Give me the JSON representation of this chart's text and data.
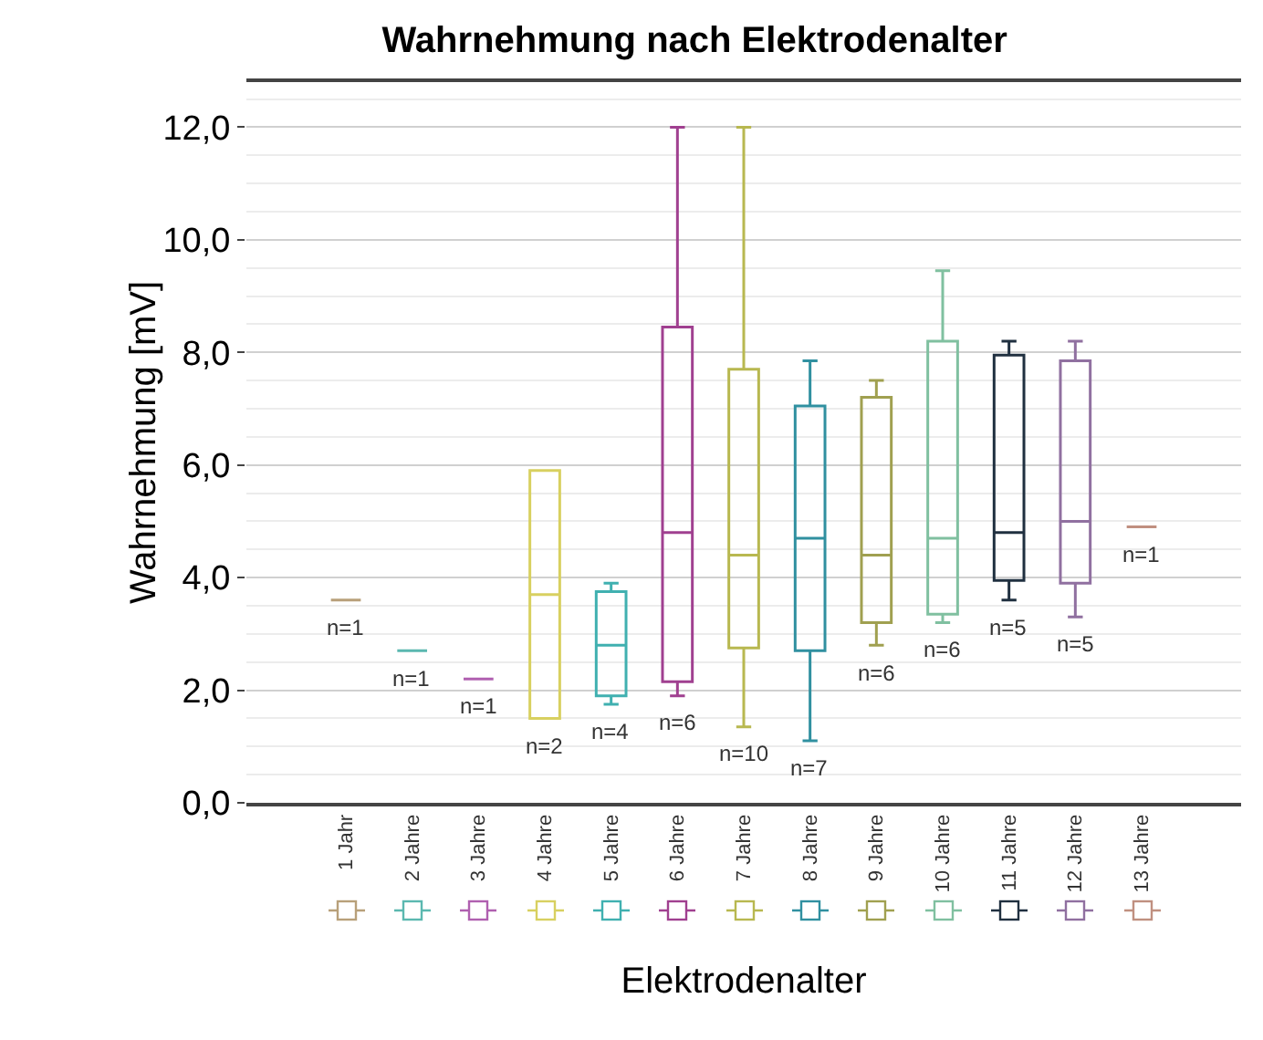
{
  "chart_data": {
    "type": "box",
    "title": "Wahrnehmung nach Elektrodenalter",
    "xlabel": "Elektrodenalter",
    "ylabel": "Wahrnehmung [mV]",
    "categories": [
      "1 Jahr",
      "2 Jahre",
      "3 Jahre",
      "4 Jahre",
      "5 Jahre",
      "6 Jahre",
      "7 Jahre",
      "8 Jahre",
      "9 Jahre",
      "10 Jahre",
      "11 Jahre",
      "12 Jahre",
      "13 Jahre"
    ],
    "colors": [
      "#b8a07a",
      "#5bb8b0",
      "#b060b0",
      "#d8d060",
      "#40b0b0",
      "#a04090",
      "#b8b850",
      "#3090a0",
      "#a0a050",
      "#80c0a0",
      "#203040",
      "#9070a0",
      "#c09080"
    ],
    "boxes": [
      {
        "low": 3.6,
        "q1": 3.6,
        "median": 3.6,
        "q3": 3.6,
        "high": 3.6
      },
      {
        "low": 2.7,
        "q1": 2.7,
        "median": 2.7,
        "q3": 2.7,
        "high": 2.7
      },
      {
        "low": 2.2,
        "q1": 2.2,
        "median": 2.2,
        "q3": 2.2,
        "high": 2.2
      },
      {
        "low": 1.5,
        "q1": 1.5,
        "median": 3.7,
        "q3": 5.9,
        "high": 5.9
      },
      {
        "low": 1.75,
        "q1": 1.9,
        "median": 2.8,
        "q3": 3.75,
        "high": 3.9
      },
      {
        "low": 1.9,
        "q1": 2.15,
        "median": 4.8,
        "q3": 8.45,
        "high": 12
      },
      {
        "low": 1.35,
        "q1": 2.75,
        "median": 4.4,
        "q3": 7.7,
        "high": 12
      },
      {
        "low": 1.1,
        "q1": 2.7,
        "median": 4.7,
        "q3": 7.05,
        "high": 7.85
      },
      {
        "low": 2.8,
        "q1": 3.2,
        "median": 4.4,
        "q3": 7.2,
        "high": 7.5
      },
      {
        "low": 3.2,
        "q1": 3.35,
        "median": 4.7,
        "q3": 8.2,
        "high": 9.45
      },
      {
        "low": 3.6,
        "q1": 3.95,
        "median": 4.8,
        "q3": 7.95,
        "high": 8.2
      },
      {
        "low": 3.3,
        "q1": 3.9,
        "median": 5.0,
        "q3": 7.85,
        "high": 8.2
      },
      {
        "low": 4.9,
        "q1": 4.9,
        "median": 4.9,
        "q3": 4.9,
        "high": 4.9
      }
    ],
    "ylim": [
      0,
      12.8
    ],
    "yticks": [
      {
        "value": 0,
        "label": "0,0"
      },
      {
        "value": 2,
        "label": "2,0"
      },
      {
        "value": 4,
        "label": "4,0"
      },
      {
        "value": 6,
        "label": "6,0"
      },
      {
        "value": 8,
        "label": "8,0"
      },
      {
        "value": 10,
        "label": "10,0"
      },
      {
        "value": 12,
        "label": "12,0"
      }
    ],
    "grid": "y",
    "annotations": [
      {
        "text": "n=1",
        "x": "1 Jahr",
        "y": 3.6
      },
      {
        "text": "n=1",
        "x": "2 Jahre",
        "y": 2.7
      },
      {
        "text": "n=1",
        "x": "3 Jahre",
        "y": 2.2
      },
      {
        "text": "n=2",
        "x": "4 Jahre",
        "y": 1.5
      },
      {
        "text": "n=4",
        "x": "5 Jahre",
        "y": 1.75
      },
      {
        "text": "n=6",
        "x": "6 Jahre",
        "y": 1.9
      },
      {
        "text": "n=10",
        "x": "7 Jahre",
        "y": 1.35
      },
      {
        "text": "n=7",
        "x": "8 Jahre",
        "y": 1.1
      },
      {
        "text": "n=6",
        "x": "9 Jahre",
        "y": 2.8
      },
      {
        "text": "n=6",
        "x": "10 Jahre",
        "y": 3.2
      },
      {
        "text": "n=5",
        "x": "11 Jahre",
        "y": 3.6
      },
      {
        "text": "n=5",
        "x": "12 Jahre",
        "y": 3.3
      },
      {
        "text": "n=1",
        "x": "13 Jahre",
        "y": 4.9
      }
    ]
  }
}
